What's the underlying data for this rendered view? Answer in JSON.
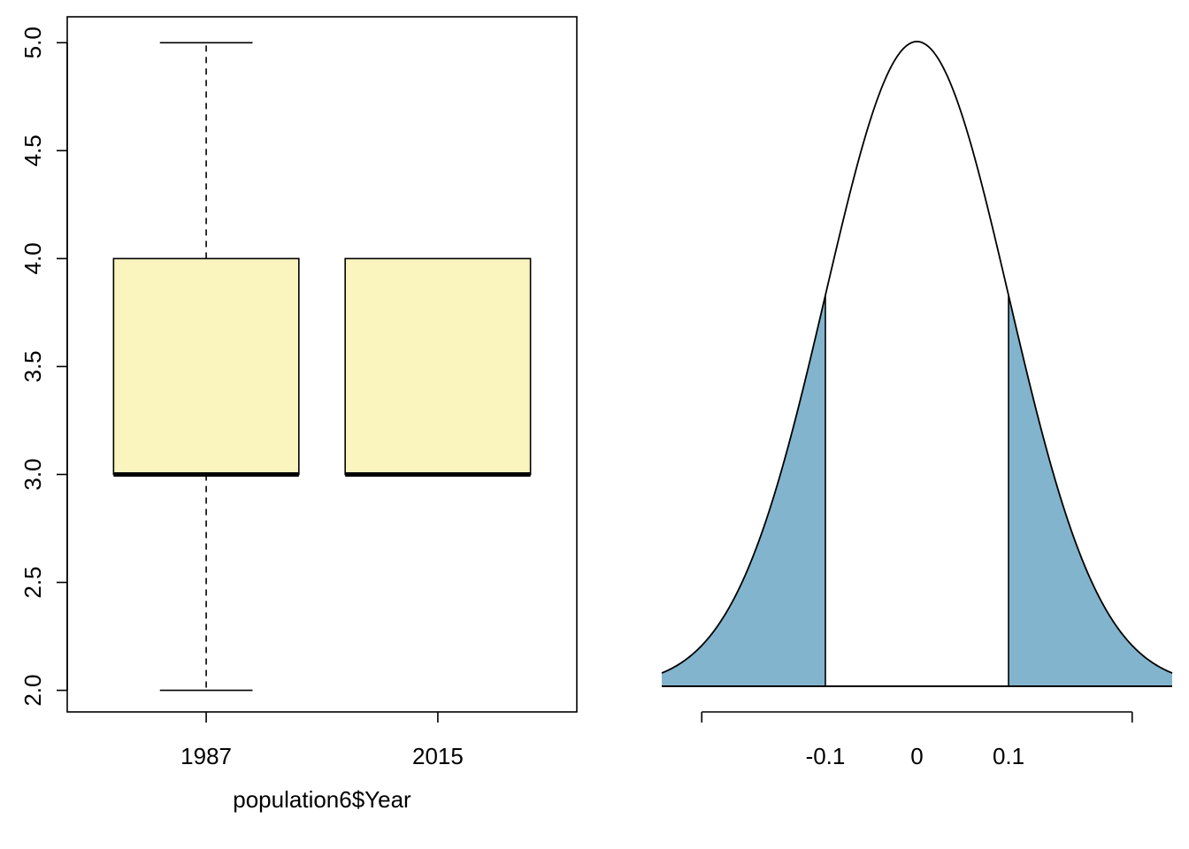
{
  "chart_data": [
    {
      "type": "box",
      "title": "",
      "xlabel": "population6$Year",
      "ylabel": "",
      "ylim": [
        1.9,
        5.12
      ],
      "yticks": [
        "2.0",
        "2.5",
        "3.0",
        "3.5",
        "4.0",
        "4.5",
        "5.0"
      ],
      "categories": [
        "1987",
        "2015"
      ],
      "boxes": [
        {
          "name": "1987",
          "min": 2.0,
          "q1": 3.0,
          "median": 3.0,
          "q3": 4.0,
          "max": 5.0
        },
        {
          "name": "2015",
          "min": 3.0,
          "q1": 3.0,
          "median": 3.0,
          "q3": 4.0,
          "max": 4.0
        }
      ],
      "box_color": "#FAF5BE",
      "grid": false
    },
    {
      "type": "area",
      "title": "",
      "xlabel": "",
      "ylabel": "",
      "distribution": "normal",
      "mean": 0,
      "sd": 0.1,
      "xlim": [
        -0.2787,
        0.2787
      ],
      "axis_range": [
        -0.235,
        0.235
      ],
      "xticks": [
        "-0.1",
        "0",
        "0.1"
      ],
      "shaded_below": -0.1,
      "shaded_above": 0.1,
      "fill_color": "#82B4CD",
      "grid": false
    }
  ]
}
